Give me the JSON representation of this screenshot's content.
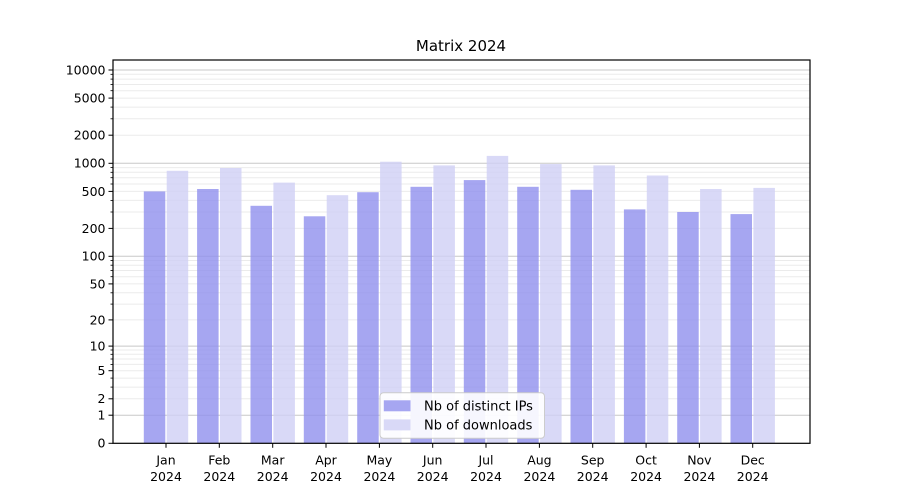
{
  "chart_data": {
    "type": "bar",
    "title": "Matrix 2024",
    "categories": [
      "Jan 2024",
      "Feb 2024",
      "Mar 2024",
      "Apr 2024",
      "May 2024",
      "Jun 2024",
      "Jul 2024",
      "Aug 2024",
      "Sep 2024",
      "Oct 2024",
      "Nov 2024",
      "Dec 2024"
    ],
    "series": [
      {
        "name": "Nb of distinct IPs",
        "color": "#9090ee",
        "values": [
          500,
          530,
          350,
          270,
          490,
          560,
          660,
          560,
          520,
          320,
          300,
          285
        ]
      },
      {
        "name": "Nb of downloads",
        "color": "#cfcff5",
        "values": [
          830,
          890,
          620,
          455,
          1040,
          950,
          1200,
          980,
          950,
          740,
          530,
          545
        ]
      }
    ],
    "xlabel": "",
    "ylabel": "",
    "yscale": "log1p",
    "y_ticks": [
      0,
      1,
      2,
      5,
      10,
      20,
      50,
      100,
      200,
      500,
      1000,
      2000,
      5000,
      10000
    ],
    "ylim": [
      0,
      12600
    ],
    "grid": "horizontal-major-and-minor",
    "legend_position": "lower center",
    "legend_labels": [
      "Nb of distinct IPs",
      "Nb of downloads"
    ]
  },
  "colors": {
    "background": "#ffffff",
    "spine": "#000000",
    "major_grid": "#c8c8c8",
    "minor_grid": "#ebebeb",
    "legend_border": "#cccccc",
    "legend_bg": "#ffffff",
    "bar_ips": "#9090ee",
    "bar_downloads": "#cfcff5"
  }
}
